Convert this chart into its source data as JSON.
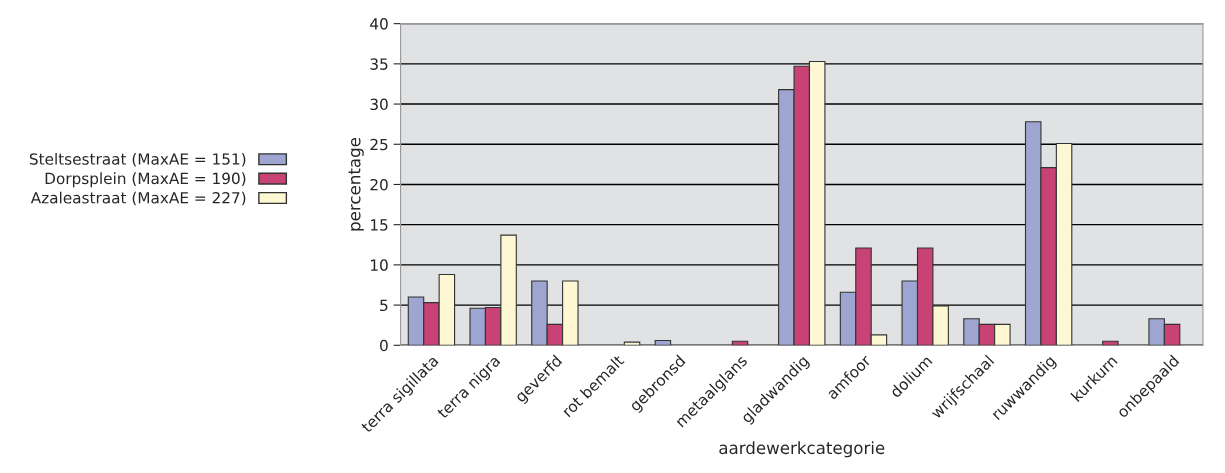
{
  "chart_data": {
    "type": "bar",
    "xlabel": "aardewerkcategorie",
    "ylabel": "percentage",
    "categories": [
      "terra sigillata",
      "terra nigra",
      "geverfd",
      "rot bemalt",
      "gebronsd",
      "metaalglans",
      "gladwandig",
      "amfoor",
      "dolium",
      "wrijfschaal",
      "ruwwandig",
      "kurkurn",
      "onbepaald"
    ],
    "series": [
      {
        "name": "Steltsestraat (MaxAE = 151)",
        "color": "#9da5d0",
        "values": [
          6.0,
          4.6,
          8.0,
          null,
          0.6,
          null,
          31.8,
          6.6,
          8.0,
          3.3,
          27.8,
          null,
          3.3
        ]
      },
      {
        "name": "Dorpsplein (MaxAE = 190)",
        "color": "#c84276",
        "values": [
          5.3,
          4.7,
          2.6,
          null,
          null,
          0.5,
          34.7,
          12.1,
          12.1,
          2.6,
          22.1,
          0.5,
          2.6
        ]
      },
      {
        "name": "Azaleastraat (MaxAE = 227)",
        "color": "#fdf8d3",
        "values": [
          8.8,
          13.7,
          8.0,
          0.4,
          null,
          null,
          35.3,
          1.3,
          4.9,
          2.6,
          25.1,
          null,
          null
        ]
      }
    ],
    "ylim": [
      0,
      40
    ],
    "yticks": [
      0,
      5,
      10,
      15,
      20,
      25,
      30,
      35,
      40
    ],
    "grid": "y",
    "legend": "left"
  }
}
